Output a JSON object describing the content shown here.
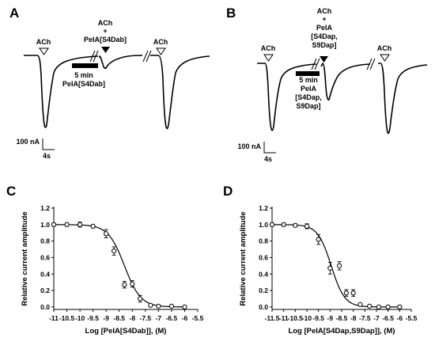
{
  "panels": {
    "A": {
      "letter": "A",
      "ach_1": "ACh",
      "coapp": [
        "ACh",
        "+",
        "PeIA[S4Dab]"
      ],
      "ach_3": "ACh",
      "incub": [
        "5 min",
        "PeIA[S4Dab]"
      ],
      "scale_y": "100 nA",
      "scale_x": "4s"
    },
    "B": {
      "letter": "B",
      "ach_1": "ACh",
      "coapp": [
        "ACh",
        "+",
        "PeIA",
        "[S4Dap,",
        "S9Dap]"
      ],
      "ach_3": "ACh",
      "incub": [
        "5 min",
        "PeIA",
        "[S4Dap,",
        "S9Dap]"
      ],
      "scale_y": "100 nA",
      "scale_x": "4s"
    },
    "C": {
      "letter": "C"
    },
    "D": {
      "letter": "D"
    }
  },
  "chart_data": [
    {
      "type": "scatter",
      "title": "",
      "xlabel": "Log [PeIA[S4Dab]], (M)",
      "ylabel": "Relative current amplitude",
      "xlim": [
        -11,
        -5.5
      ],
      "ylim": [
        -0.03,
        1.2
      ],
      "xticks": [
        "-11",
        "-10.5",
        "-10",
        "-9.5",
        "-9",
        "-8.5",
        "-8",
        "-7.5",
        "-7",
        "-6.5",
        "-6",
        "-5.5"
      ],
      "yticks": [
        "0.0",
        "0.2",
        "0.4",
        "0.6",
        "0.8",
        "1.0",
        "1.2"
      ],
      "grid": false,
      "marker": "open-circle",
      "fit": {
        "model": "hill",
        "log_ic50": -8.3,
        "hill_slope": 1.4
      },
      "x": [
        -11,
        -10.5,
        -10,
        -9.5,
        -9,
        -8.7,
        -8.3,
        -8,
        -7.7,
        -7.3,
        -7,
        -6.5,
        -6
      ],
      "y": [
        1.0,
        1.0,
        1.0,
        0.98,
        0.89,
        0.68,
        0.27,
        0.28,
        0.1,
        0.02,
        0.01,
        0.01,
        0.0
      ],
      "err": [
        0.02,
        0.02,
        0.03,
        0.02,
        0.05,
        0.05,
        0.04,
        0.04,
        0.04,
        0.01,
        0.01,
        0.01,
        0.01
      ]
    },
    {
      "type": "scatter",
      "title": "",
      "xlabel": "Log [PeIA[S4Dap,S9Dap]], (M)",
      "ylabel": "Relative current amplitude",
      "xlim": [
        -11.5,
        -5.5
      ],
      "ylim": [
        -0.03,
        1.2
      ],
      "xticks": [
        "-11.5",
        "-11",
        "-10.5",
        "-10",
        "-9.5",
        "-9",
        "-8.5",
        "-8",
        "-7.5",
        "-7",
        "-6.5",
        "-6",
        "-5.5"
      ],
      "yticks": [
        "0.0",
        "0.2",
        "0.4",
        "0.6",
        "0.8",
        "1.0",
        "1.2"
      ],
      "grid": false,
      "marker": "open-circle",
      "fit": {
        "model": "hill",
        "log_ic50": -8.95,
        "hill_slope": 1.5
      },
      "x": [
        -11.5,
        -11,
        -10.5,
        -10,
        -9.5,
        -9,
        -8.6,
        -8.3,
        -8,
        -7.7,
        -7.3,
        -6.9,
        -6.5,
        -6
      ],
      "y": [
        1.0,
        1.0,
        0.99,
        0.98,
        0.82,
        0.47,
        0.5,
        0.17,
        0.17,
        0.03,
        0.01,
        0.0,
        0.0,
        0.0
      ],
      "err": [
        0.02,
        0.02,
        0.02,
        0.03,
        0.06,
        0.07,
        0.05,
        0.04,
        0.04,
        0.01,
        0.01,
        0.01,
        0.01,
        0.01
      ]
    }
  ]
}
